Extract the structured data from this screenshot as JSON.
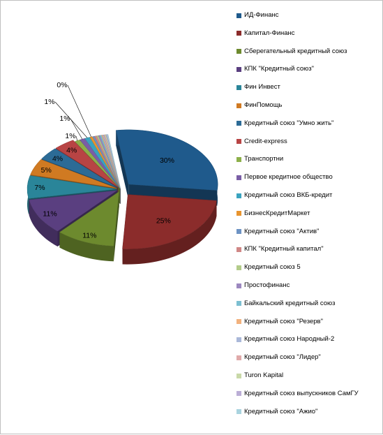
{
  "chart_data": {
    "type": "pie",
    "title": "",
    "series": [
      {
        "name": "ИД-Финанс",
        "value": 30,
        "label": "30%",
        "color": "#1f5a8c"
      },
      {
        "name": "Капитал-Финанс",
        "value": 25,
        "label": "25%",
        "color": "#8b2c2b"
      },
      {
        "name": "Сберегательный кредитный союз",
        "value": 11,
        "label": "11%",
        "color": "#6d8a2e"
      },
      {
        "name": "КПК \"Кредитный союз\"",
        "value": 11,
        "label": "11%",
        "color": "#5a3f80"
      },
      {
        "name": "Фин Инвест",
        "value": 7,
        "label": "7%",
        "color": "#2a8599"
      },
      {
        "name": "ФинПомощь",
        "value": 5,
        "label": "5%",
        "color": "#d07a22"
      },
      {
        "name": "Кредитный союз \"Умно жить\"",
        "value": 4,
        "label": "4%",
        "color": "#2c6b96"
      },
      {
        "name": "Credit-express",
        "value": 4,
        "label": "4%",
        "color": "#b84444"
      },
      {
        "name": "Транспортни",
        "value": 1,
        "label": "1%",
        "color": "#8db04a"
      },
      {
        "name": "Первое кредитное общество",
        "value": 1,
        "label": "1%",
        "color": "#7a5ea6"
      },
      {
        "name": "Кредитный союз ВКБ-кредит",
        "value": 1,
        "label": "1%",
        "color": "#3aa3bf"
      },
      {
        "name": "БизнесКредитМаркет",
        "value": 0.5,
        "label": "0%",
        "color": "#e8942e"
      },
      {
        "name": "Кредитный союз \"Актив\"",
        "value": 0.4,
        "label": "",
        "color": "#6d93c4"
      },
      {
        "name": "КПК \"Кредитный капитал\"",
        "value": 0.4,
        "label": "",
        "color": "#d08786"
      },
      {
        "name": "Кредитный союз 5",
        "value": 0.3,
        "label": "",
        "color": "#b3cc8a"
      },
      {
        "name": "Простофинанс",
        "value": 0.3,
        "label": "",
        "color": "#9c88bf"
      },
      {
        "name": "Байкальский кредитный союз",
        "value": 0.3,
        "label": "",
        "color": "#7cbfd1"
      },
      {
        "name": "Кредитный союз \"Резерв\"",
        "value": 0.2,
        "label": "",
        "color": "#f2b27e"
      },
      {
        "name": "Кредитный союз Народный-2",
        "value": 0.2,
        "label": "",
        "color": "#aab8d9"
      },
      {
        "name": "Кредитный союз \"Лидер\"",
        "value": 0.2,
        "label": "",
        "color": "#e0aaaa"
      },
      {
        "name": "Turon Kapital",
        "value": 0.2,
        "label": "",
        "color": "#c9d9a8"
      },
      {
        "name": "Кредитный союз выпускников СамГУ",
        "value": 0.2,
        "label": "",
        "color": "#bbaed6"
      },
      {
        "name": "Кредитный союз \"Ажио\"",
        "value": 0.2,
        "label": "",
        "color": "#a9d3df"
      }
    ],
    "legend_position": "right"
  }
}
